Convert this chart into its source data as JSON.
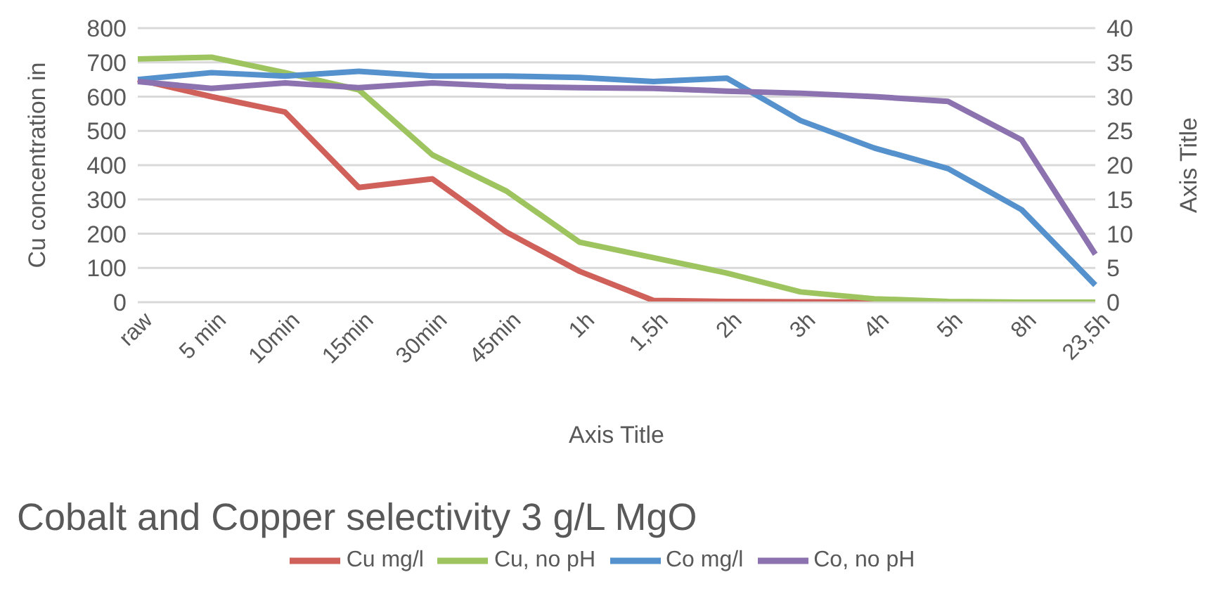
{
  "chart_data": {
    "type": "line",
    "title": "Cobalt and Copper selectivity 3 g/L MgO",
    "xlabel": "Axis Title",
    "ylabel": "Cu concentration in",
    "y2label": "Axis Title",
    "categories": [
      "raw",
      "5 min",
      "10min",
      "15min",
      "30min",
      "45min",
      "1h",
      "1,5h",
      "2h",
      "3h",
      "4h",
      "5h",
      "8h",
      "23,5h"
    ],
    "series": [
      {
        "name": "Cu mg/l",
        "color": "#d0605a",
        "values": [
          650,
          600,
          555,
          335,
          360,
          205,
          90,
          5,
          2,
          1,
          0,
          0,
          null,
          null
        ]
      },
      {
        "name": "Cu, no pH",
        "color": "#9dc45f",
        "values": [
          710,
          715,
          670,
          620,
          430,
          325,
          175,
          130,
          85,
          30,
          10,
          2,
          0,
          0
        ]
      },
      {
        "name": "Co mg/l",
        "color": "#5591cc",
        "axis": "y2",
        "values": [
          32.5,
          33.5,
          33,
          33.7,
          33,
          33,
          32.8,
          32.2,
          32.7,
          26.5,
          22.5,
          19.5,
          13.5,
          2.5
        ]
      },
      {
        "name": "Co, no pH",
        "color": "#8c73b0",
        "axis": "y2",
        "values": [
          32.2,
          31.2,
          32,
          31.3,
          32,
          31.5,
          31.3,
          31.2,
          30.8,
          30.5,
          30,
          29.3,
          23.7,
          7
        ]
      }
    ],
    "ylim": [
      0,
      800
    ],
    "yticks": [
      0,
      100,
      200,
      300,
      400,
      500,
      600,
      700,
      800
    ],
    "y2lim": [
      0,
      40
    ],
    "y2ticks": [
      0,
      5,
      10,
      15,
      20,
      25,
      30,
      35,
      40
    ],
    "grid": "y",
    "legend": "bottom",
    "marker": "none",
    "line_style": "solid"
  }
}
